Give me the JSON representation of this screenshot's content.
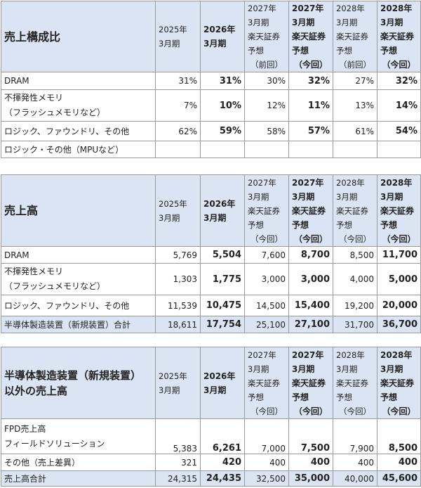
{
  "tables": [
    {
      "title": "売上構成比",
      "headers": [
        {
          "lines": [
            "2025年",
            "3月期"
          ]
        },
        {
          "lines": [
            "2026年",
            "3月期"
          ]
        },
        {
          "lines": [
            "2027年",
            "3月期",
            "楽天証券",
            "予想",
            "（前回）"
          ]
        },
        {
          "lines": [
            "2027年",
            "3月期",
            "楽天証券",
            "予想",
            "（今回）"
          ]
        },
        {
          "lines": [
            "2028年",
            "3月期",
            "楽天証券",
            "予想",
            "（前回）"
          ]
        },
        {
          "lines": [
            "2028年",
            "3月期",
            "楽天証券",
            "予想",
            "（今回）"
          ]
        }
      ],
      "rows": [
        {
          "label": [
            "DRAM"
          ],
          "values": [
            "31%",
            "31%",
            "30%",
            "32%",
            "27%",
            "32%"
          ]
        },
        {
          "label": [
            "不揮発性メモリ",
            "（フラッシュメモリなど）"
          ],
          "values": [
            "7%",
            "10%",
            "12%",
            "11%",
            "13%",
            "14%"
          ]
        },
        {
          "label": [
            "ロジック、ファウンドリ、その他"
          ],
          "values": [
            "62%",
            "59%",
            "58%",
            "57%",
            "61%",
            "54%"
          ]
        },
        {
          "label": [
            "ロジック・その他（MPUなど）"
          ],
          "values": [
            "",
            "",
            "",
            "",
            "",
            ""
          ]
        }
      ]
    },
    {
      "title": "売上高",
      "headers": [
        {
          "lines": [
            "2025年",
            "3月期"
          ]
        },
        {
          "lines": [
            "2026年",
            "3月期"
          ]
        },
        {
          "lines": [
            "2027年",
            "3月期",
            "楽天証券",
            "予想",
            "（今回）"
          ]
        },
        {
          "lines": [
            "2027年",
            "3月期",
            "楽天証券",
            "予想",
            "（今回）"
          ]
        },
        {
          "lines": [
            "2028年",
            "3月期",
            "楽天証券",
            "予想",
            "（今回）"
          ]
        },
        {
          "lines": [
            "2028年",
            "3月期",
            "楽天証券",
            "予想",
            "（今回）"
          ]
        }
      ],
      "rows": [
        {
          "label": [
            "DRAM"
          ],
          "values": [
            "5,769",
            "5,504",
            "7,600",
            "8,700",
            "8,500",
            "11,700"
          ]
        },
        {
          "label": [
            "不揮発性メモリ",
            "（フラッシュメモリなど）"
          ],
          "values": [
            "1,303",
            "1,775",
            "3,000",
            "3,000",
            "4,000",
            "5,000"
          ]
        },
        {
          "label": [
            "ロジック、ファウンドリ、その他"
          ],
          "values": [
            "11,539",
            "10,475",
            "14,500",
            "15,400",
            "19,200",
            "20,000"
          ]
        }
      ],
      "total": {
        "label": "半導体製造装置（新規装置）合計",
        "values": [
          "18,611",
          "17,754",
          "25,100",
          "27,100",
          "31,700",
          "36,700"
        ]
      }
    },
    {
      "title_lines": [
        "半導体製造装置（新規装置）",
        "以外の売上高"
      ],
      "headers": [
        {
          "lines": [
            "2025年",
            "3月期"
          ]
        },
        {
          "lines": [
            "2026年",
            "3月期"
          ]
        },
        {
          "lines": [
            "2027年",
            "3月期",
            "楽天証券",
            "予想",
            "（今回）"
          ]
        },
        {
          "lines": [
            "2027年",
            "3月期",
            "楽天証券",
            "予想",
            "（今回）"
          ]
        },
        {
          "lines": [
            "2028年",
            "3月期",
            "楽天証券",
            "予想",
            "（今回）"
          ]
        },
        {
          "lines": [
            "2028年",
            "3月期",
            "楽天証券",
            "予想",
            "（今回）"
          ]
        }
      ],
      "rows": [
        {
          "label": [
            "FPD売上高",
            "フィールドソリューション"
          ],
          "values": [
            "5,383",
            "6,261",
            "7,000",
            "7,500",
            "7,900",
            "8,500"
          ]
        },
        {
          "label": [
            "その他（売上差異）"
          ],
          "values": [
            "321",
            "420",
            "400",
            "400",
            "400",
            "400"
          ]
        }
      ],
      "total": {
        "label": "売上高合計",
        "values": [
          "24,315",
          "24,435",
          "32,500",
          "35,000",
          "40,000",
          "45,600"
        ]
      }
    }
  ]
}
